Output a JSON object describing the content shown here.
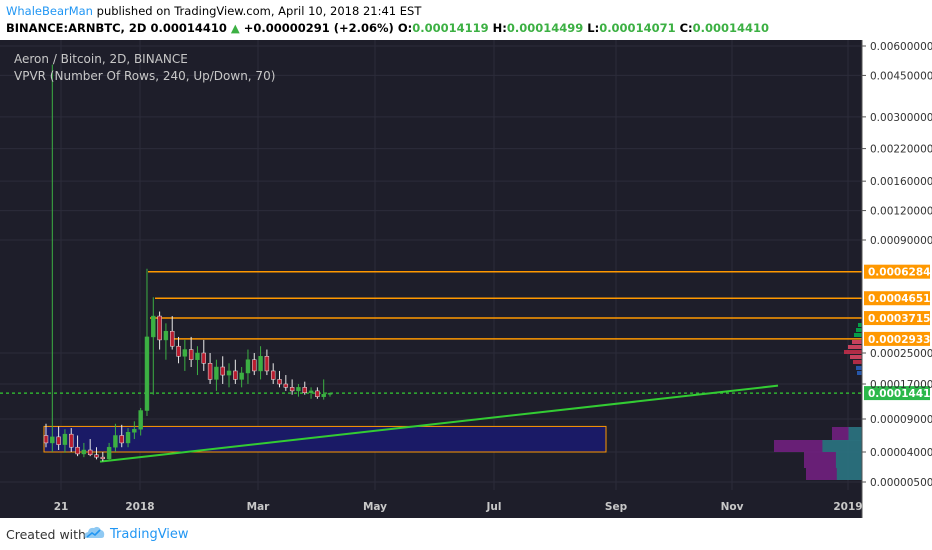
{
  "header": {
    "author": "WhaleBearMan",
    "published_text": "published on TradingView.com, April 10, 2018 21:41 EST",
    "symbol": "BINANCE:ARNBTC, 2D",
    "last": "0.00014410",
    "change_arrow": "▲",
    "change": "+0.00000291 (+2.06%)",
    "o_label": "O:",
    "o": "0.00014119",
    "h_label": "H:",
    "h": "0.00014499",
    "l_label": "L:",
    "l": "0.00014071",
    "c_label": "C:",
    "c": "0.00014410"
  },
  "legend": {
    "line1": "Aeron / Bitcoin, 2D, BINANCE",
    "line2": "VPVR (Number Of Rows, 240, Up/Down, 70)"
  },
  "footer": {
    "created_with": "Created with",
    "brand": "TradingView"
  },
  "colors": {
    "background": "#1e1e2a",
    "up_candle": "#3cb043",
    "down_candle": "#e8e8e8",
    "resistance": "#ff9800",
    "support_zone": "#1a1a66",
    "trendline": "#33cc33",
    "last_price_line": "#33cc33"
  },
  "chart_data": {
    "type": "candlestick",
    "title": "Aeron / Bitcoin, 2D, BINANCE",
    "y_scale": "log",
    "ylim": [
      4e-06,
      0.006
    ],
    "y_ticks": [
      "0.00600000",
      "0.00450000",
      "0.00300000",
      "0.00220000",
      "0.00160000",
      "0.00120000",
      "0.00090000",
      "0.00025000",
      "0.00017000",
      "0.00009000",
      "0.00004000",
      "0.00000500"
    ],
    "x_ticks": [
      "21",
      "2018",
      "Mar",
      "May",
      "Jul",
      "Sep",
      "Nov",
      "2019"
    ],
    "last_price": "0.00014410",
    "resistance_levels": [
      "0.00062841",
      "0.00046518",
      "0.00037150",
      "0.00029335"
    ],
    "support_zone": {
      "low": 4e-05,
      "high": 7.5e-05
    },
    "trendline": {
      "start": 2.05e-05,
      "end": 0.000165
    },
    "series": [
      {
        "open": 6e-05,
        "high": 8e-05,
        "low": 4.5e-05,
        "close": 5e-05
      },
      {
        "open": 5e-05,
        "high": 0.005,
        "low": 4e-05,
        "close": 5.8e-05
      },
      {
        "open": 5.8e-05,
        "high": 7.5e-05,
        "low": 4.2e-05,
        "close": 4.8e-05
      },
      {
        "open": 4.8e-05,
        "high": 7e-05,
        "low": 3.8e-05,
        "close": 6.2e-05
      },
      {
        "open": 6.2e-05,
        "high": 7.2e-05,
        "low": 4e-05,
        "close": 4.5e-05
      },
      {
        "open": 4.5e-05,
        "high": 6e-05,
        "low": 3e-05,
        "close": 3.5e-05
      },
      {
        "open": 3.5e-05,
        "high": 5e-05,
        "low": 2.8e-05,
        "close": 4.2e-05
      },
      {
        "open": 4.2e-05,
        "high": 5.5e-05,
        "low": 3e-05,
        "close": 3.3e-05
      },
      {
        "open": 3.3e-05,
        "high": 4.5e-05,
        "low": 2.4e-05,
        "close": 2.8e-05
      },
      {
        "open": 2.8e-05,
        "high": 4e-05,
        "low": 2.1e-05,
        "close": 2.5e-05
      },
      {
        "open": 2.5e-05,
        "high": 5e-05,
        "low": 2.2e-05,
        "close": 4.5e-05
      },
      {
        "open": 4.5e-05,
        "high": 8e-05,
        "low": 4e-05,
        "close": 6e-05
      },
      {
        "open": 6e-05,
        "high": 7.8e-05,
        "low": 4.5e-05,
        "close": 5e-05
      },
      {
        "open": 5e-05,
        "high": 7.2e-05,
        "low": 4.5e-05,
        "close": 6.5e-05
      },
      {
        "open": 6.5e-05,
        "high": 8.5e-05,
        "low": 5.5e-05,
        "close": 7e-05
      },
      {
        "open": 7e-05,
        "high": 0.00011,
        "low": 6e-05,
        "close": 0.000105
      },
      {
        "open": 0.000105,
        "high": 0.00065,
        "low": 9.5e-05,
        "close": 0.0003
      },
      {
        "open": 0.0003,
        "high": 0.00047,
        "low": 0.00014,
        "close": 0.00038
      },
      {
        "open": 0.00038,
        "high": 0.0004,
        "low": 0.00026,
        "close": 0.00029
      },
      {
        "open": 0.00029,
        "high": 0.00035,
        "low": 0.00023,
        "close": 0.00032
      },
      {
        "open": 0.00032,
        "high": 0.00038,
        "low": 0.00026,
        "close": 0.00027
      },
      {
        "open": 0.00027,
        "high": 0.0003,
        "low": 0.00022,
        "close": 0.00024
      },
      {
        "open": 0.00024,
        "high": 0.00029,
        "low": 0.0002,
        "close": 0.00026
      },
      {
        "open": 0.00026,
        "high": 0.0003,
        "low": 0.00021,
        "close": 0.00023
      },
      {
        "open": 0.00023,
        "high": 0.00027,
        "low": 0.00019,
        "close": 0.00025
      },
      {
        "open": 0.00025,
        "high": 0.00029,
        "low": 0.0002,
        "close": 0.00022
      },
      {
        "open": 0.00022,
        "high": 0.00025,
        "low": 0.00017,
        "close": 0.00018
      },
      {
        "open": 0.00018,
        "high": 0.00023,
        "low": 0.00015,
        "close": 0.00021
      },
      {
        "open": 0.00021,
        "high": 0.00024,
        "low": 0.00017,
        "close": 0.00019
      },
      {
        "open": 0.00019,
        "high": 0.00022,
        "low": 0.00016,
        "close": 0.0002
      },
      {
        "open": 0.0002,
        "high": 0.00023,
        "low": 0.00017,
        "close": 0.00018
      },
      {
        "open": 0.00018,
        "high": 0.00021,
        "low": 0.00016,
        "close": 0.000195
      },
      {
        "open": 0.000195,
        "high": 0.00026,
        "low": 0.00017,
        "close": 0.00023
      },
      {
        "open": 0.00023,
        "high": 0.00025,
        "low": 0.00019,
        "close": 0.0002
      },
      {
        "open": 0.0002,
        "high": 0.00027,
        "low": 0.00018,
        "close": 0.00024
      },
      {
        "open": 0.00024,
        "high": 0.00026,
        "low": 0.00019,
        "close": 0.0002
      },
      {
        "open": 0.0002,
        "high": 0.00022,
        "low": 0.00017,
        "close": 0.00018
      },
      {
        "open": 0.00018,
        "high": 0.0002,
        "low": 0.00016,
        "close": 0.00017
      },
      {
        "open": 0.00017,
        "high": 0.00019,
        "low": 0.00015,
        "close": 0.00016
      },
      {
        "open": 0.00016,
        "high": 0.00018,
        "low": 0.00014,
        "close": 0.00015
      },
      {
        "open": 0.00015,
        "high": 0.00017,
        "low": 0.000135,
        "close": 0.00016
      },
      {
        "open": 0.00016,
        "high": 0.000175,
        "low": 0.00014,
        "close": 0.000145
      },
      {
        "open": 0.000145,
        "high": 0.00016,
        "low": 0.00013,
        "close": 0.00015
      },
      {
        "open": 0.00015,
        "high": 0.00016,
        "low": 0.00013,
        "close": 0.000135
      },
      {
        "open": 0.000135,
        "high": 0.00018,
        "low": 0.000128,
        "close": 0.000141
      },
      {
        "open": 0.000141,
        "high": 0.000145,
        "low": 0.000135,
        "close": 0.000144
      }
    ]
  }
}
